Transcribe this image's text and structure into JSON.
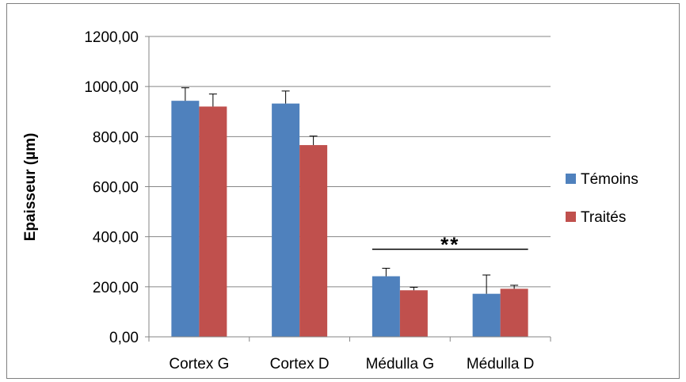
{
  "chart_data": {
    "type": "bar",
    "title": "",
    "xlabel": "",
    "ylabel": "Epaisseur (µm)",
    "ylim": [
      0,
      1200
    ],
    "yticks": [
      "0,00",
      "200,00",
      "400,00",
      "600,00",
      "800,00",
      "1000,00",
      "1200,00"
    ],
    "ytick_values": [
      0,
      200,
      400,
      600,
      800,
      1000,
      1200
    ],
    "grid": true,
    "legend_position": "right",
    "categories": [
      "Cortex G",
      "Cortex D",
      "Médulla G",
      "Médulla D"
    ],
    "series": [
      {
        "name": "Témoins",
        "color": "#4f81bd",
        "values": [
          943,
          932,
          242,
          172
        ],
        "errors": [
          52,
          50,
          32,
          75
        ]
      },
      {
        "name": "Traités",
        "color": "#c0504d",
        "values": [
          920,
          766,
          186,
          192
        ],
        "errors": [
          50,
          36,
          12,
          14
        ]
      }
    ],
    "annotation": {
      "text": "**",
      "from_category": "Médulla G",
      "to_category": "Médulla D",
      "y": 350
    }
  }
}
